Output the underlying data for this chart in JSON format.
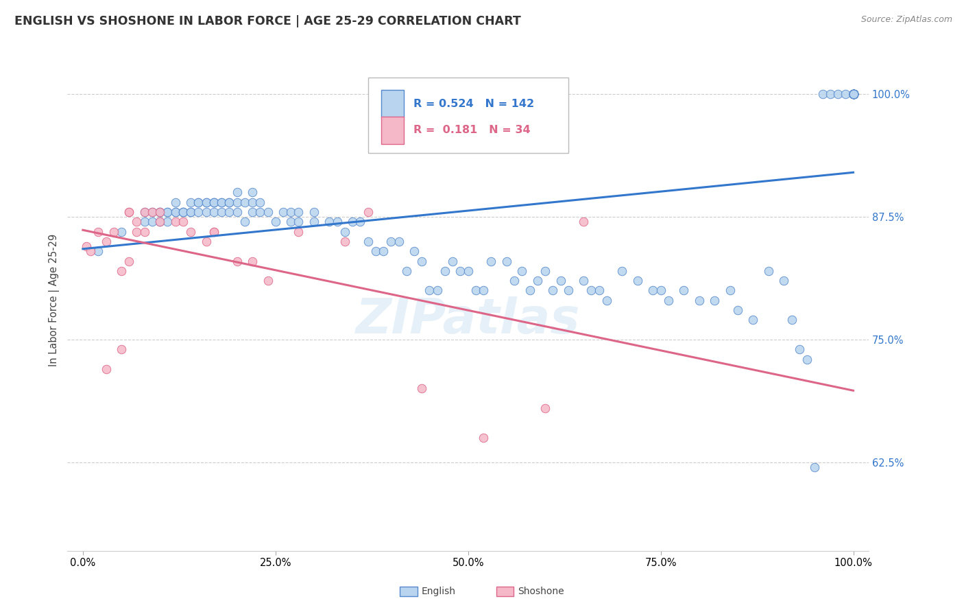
{
  "title": "ENGLISH VS SHOSHONE IN LABOR FORCE | AGE 25-29 CORRELATION CHART",
  "source": "Source: ZipAtlas.com",
  "ylabel": "In Labor Force | Age 25-29",
  "xlim": [
    -0.02,
    1.02
  ],
  "ylim": [
    0.535,
    1.045
  ],
  "xticks": [
    0.0,
    0.25,
    0.5,
    0.75,
    1.0
  ],
  "xticklabels": [
    "0.0%",
    "25.0%",
    "50.0%",
    "75.0%",
    "100.0%"
  ],
  "yticks_right": [
    0.625,
    0.75,
    0.875,
    1.0
  ],
  "yticklabels_right": [
    "62.5%",
    "75.0%",
    "87.5%",
    "100.0%"
  ],
  "english_color": "#b8d4ee",
  "english_edge": "#5588cc",
  "shoshone_color": "#f5b8c8",
  "shoshone_edge": "#dd6688",
  "english_R": 0.524,
  "english_N": 142,
  "shoshone_R": 0.181,
  "shoshone_N": 34,
  "english_line_color": "#3377cc",
  "shoshone_line_color": "#dd6688",
  "background_color": "#ffffff",
  "title_fontsize": 12.5,
  "axis_fontsize": 10.5,
  "marker_size": 9,
  "english_x": [
    0.02,
    0.05,
    0.08,
    0.08,
    0.09,
    0.09,
    0.1,
    0.1,
    0.1,
    0.11,
    0.11,
    0.11,
    0.12,
    0.12,
    0.12,
    0.13,
    0.13,
    0.13,
    0.14,
    0.14,
    0.14,
    0.15,
    0.15,
    0.15,
    0.16,
    0.16,
    0.16,
    0.17,
    0.17,
    0.17,
    0.17,
    0.18,
    0.18,
    0.18,
    0.19,
    0.19,
    0.19,
    0.2,
    0.2,
    0.2,
    0.21,
    0.21,
    0.22,
    0.22,
    0.22,
    0.23,
    0.23,
    0.24,
    0.25,
    0.26,
    0.27,
    0.27,
    0.28,
    0.28,
    0.3,
    0.3,
    0.32,
    0.33,
    0.34,
    0.35,
    0.36,
    0.37,
    0.38,
    0.39,
    0.4,
    0.41,
    0.42,
    0.43,
    0.44,
    0.45,
    0.46,
    0.47,
    0.48,
    0.49,
    0.5,
    0.51,
    0.52,
    0.53,
    0.55,
    0.56,
    0.57,
    0.58,
    0.59,
    0.6,
    0.61,
    0.62,
    0.63,
    0.65,
    0.66,
    0.67,
    0.68,
    0.7,
    0.72,
    0.74,
    0.75,
    0.76,
    0.78,
    0.8,
    0.82,
    0.84,
    0.85,
    0.87,
    0.89,
    0.91,
    0.92,
    0.93,
    0.94,
    0.95,
    0.96,
    0.97,
    0.98,
    0.99,
    1.0,
    1.0,
    1.0,
    1.0,
    1.0,
    1.0,
    1.0,
    1.0,
    1.0,
    1.0,
    1.0,
    1.0,
    1.0,
    1.0,
    1.0,
    1.0,
    1.0,
    1.0,
    1.0,
    1.0,
    1.0,
    1.0,
    1.0,
    1.0,
    1.0,
    1.0,
    1.0,
    1.0,
    1.0,
    1.0
  ],
  "english_y": [
    0.84,
    0.86,
    0.88,
    0.87,
    0.88,
    0.87,
    0.87,
    0.88,
    0.88,
    0.87,
    0.88,
    0.88,
    0.88,
    0.88,
    0.89,
    0.88,
    0.88,
    0.88,
    0.88,
    0.88,
    0.89,
    0.88,
    0.89,
    0.89,
    0.88,
    0.89,
    0.89,
    0.88,
    0.89,
    0.89,
    0.89,
    0.88,
    0.89,
    0.89,
    0.88,
    0.89,
    0.89,
    0.88,
    0.89,
    0.9,
    0.87,
    0.89,
    0.88,
    0.89,
    0.9,
    0.88,
    0.89,
    0.88,
    0.87,
    0.88,
    0.87,
    0.88,
    0.87,
    0.88,
    0.87,
    0.88,
    0.87,
    0.87,
    0.86,
    0.87,
    0.87,
    0.85,
    0.84,
    0.84,
    0.85,
    0.85,
    0.82,
    0.84,
    0.83,
    0.8,
    0.8,
    0.82,
    0.83,
    0.82,
    0.82,
    0.8,
    0.8,
    0.83,
    0.83,
    0.81,
    0.82,
    0.8,
    0.81,
    0.82,
    0.8,
    0.81,
    0.8,
    0.81,
    0.8,
    0.8,
    0.79,
    0.82,
    0.81,
    0.8,
    0.8,
    0.79,
    0.8,
    0.79,
    0.79,
    0.8,
    0.78,
    0.77,
    0.82,
    0.81,
    0.77,
    0.74,
    0.73,
    0.62,
    1.0,
    1.0,
    1.0,
    1.0,
    1.0,
    1.0,
    1.0,
    1.0,
    1.0,
    1.0,
    1.0,
    1.0,
    1.0,
    1.0,
    1.0,
    1.0,
    1.0,
    1.0,
    1.0,
    1.0,
    1.0,
    1.0,
    1.0,
    1.0,
    1.0,
    1.0,
    1.0,
    1.0,
    1.0,
    1.0,
    1.0,
    1.0,
    1.0,
    1.0
  ],
  "shoshone_x": [
    0.005,
    0.01,
    0.02,
    0.03,
    0.03,
    0.04,
    0.05,
    0.05,
    0.06,
    0.06,
    0.06,
    0.07,
    0.07,
    0.08,
    0.08,
    0.09,
    0.1,
    0.1,
    0.12,
    0.13,
    0.14,
    0.16,
    0.17,
    0.17,
    0.2,
    0.22,
    0.24,
    0.28,
    0.34,
    0.37,
    0.44,
    0.52,
    0.6,
    0.65
  ],
  "shoshone_y": [
    0.845,
    0.84,
    0.86,
    0.72,
    0.85,
    0.86,
    0.74,
    0.82,
    0.83,
    0.88,
    0.88,
    0.86,
    0.87,
    0.86,
    0.88,
    0.88,
    0.87,
    0.88,
    0.87,
    0.87,
    0.86,
    0.85,
    0.86,
    0.86,
    0.83,
    0.83,
    0.81,
    0.86,
    0.85,
    0.88,
    0.7,
    0.65,
    0.68,
    0.87
  ]
}
